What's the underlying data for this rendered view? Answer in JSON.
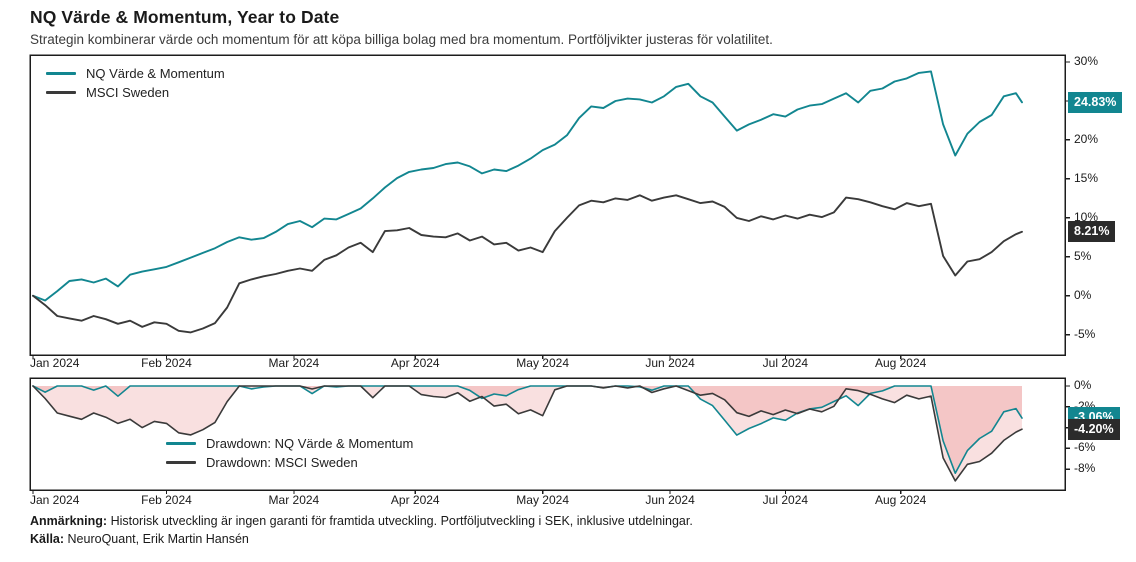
{
  "header": {
    "title": "NQ Värde & Momentum, Year to Date",
    "subtitle": "Strategin kombinerar värde och momentum för att köpa billiga bolag med bra momentum. Portföljvikter justeras för volatilitet."
  },
  "colors": {
    "nq": "#128690",
    "msci": "#3a3a3a",
    "badge_nq_bg": "#128690",
    "badge_msci_bg": "#2b2b2b",
    "badge_text": "#ffffff",
    "drawdown_fill": "#e05353",
    "axis": "#1c1c1c",
    "text": "#1a1a1a",
    "subtext": "#3c3c3c"
  },
  "chart_data": [
    {
      "type": "line",
      "panel": "cumulative-return",
      "ylim": [
        -7.6,
        30.9
      ],
      "ytick_values": [
        30,
        25,
        20,
        15,
        10,
        5,
        0,
        -5
      ],
      "ytick_labels": [
        "30%",
        "25%",
        "20%",
        "15%",
        "10%",
        "5%",
        "0%",
        "-5%"
      ],
      "x_tick_days": [
        0,
        22,
        43,
        63,
        84,
        105,
        124,
        143
      ],
      "x_tick_labels": [
        "Jan 2024",
        "Feb 2024",
        "Mar 2024",
        "Apr 2024",
        "May 2024",
        "Jun 2024",
        "Jul 2024",
        "Aug 2024"
      ],
      "last_day": 163,
      "x_step_days": 2,
      "grid": false,
      "legend_position": "top-left-inside",
      "series": [
        {
          "name": "NQ Värde & Momentum",
          "color_key": "nq",
          "values": [
            0.0,
            -0.6,
            0.6,
            1.9,
            2.1,
            1.7,
            2.2,
            1.2,
            2.7,
            3.1,
            3.4,
            3.7,
            4.3,
            4.9,
            5.5,
            6.1,
            6.9,
            7.5,
            7.2,
            7.4,
            8.2,
            9.2,
            9.6,
            8.8,
            9.9,
            9.8,
            10.5,
            11.2,
            12.5,
            13.9,
            15.1,
            15.9,
            16.2,
            16.4,
            16.9,
            17.1,
            16.6,
            15.7,
            16.2,
            16.0,
            16.7,
            17.6,
            18.7,
            19.4,
            20.6,
            22.8,
            24.3,
            24.1,
            25.0,
            25.3,
            25.2,
            24.8,
            25.6,
            26.8,
            27.2,
            25.6,
            24.8,
            23.0,
            21.2,
            22.0,
            22.6,
            23.3,
            23.0,
            23.9,
            24.4,
            24.6,
            25.3,
            26.0,
            24.8,
            26.3,
            26.6,
            27.5,
            27.9,
            28.6,
            28.8,
            22.0,
            18.0,
            20.8,
            22.3,
            23.2,
            25.6,
            26.0,
            24.83
          ]
        },
        {
          "name": "MSCI Sweden",
          "color_key": "msci",
          "values": [
            0.0,
            -1.2,
            -2.6,
            -2.9,
            -3.2,
            -2.6,
            -3.0,
            -3.6,
            -3.2,
            -4.0,
            -3.4,
            -3.6,
            -4.5,
            -4.7,
            -4.2,
            -3.5,
            -1.5,
            1.6,
            2.1,
            2.5,
            2.8,
            3.2,
            3.5,
            3.2,
            4.6,
            5.2,
            6.2,
            6.8,
            5.6,
            8.3,
            8.4,
            8.7,
            7.8,
            7.6,
            7.5,
            8.0,
            7.1,
            7.6,
            6.6,
            6.8,
            5.8,
            6.2,
            5.6,
            8.3,
            10.0,
            11.6,
            12.2,
            12.0,
            12.5,
            12.3,
            12.9,
            12.2,
            12.6,
            12.9,
            12.4,
            11.9,
            12.1,
            11.4,
            10.0,
            9.6,
            10.2,
            9.8,
            10.3,
            9.9,
            10.4,
            10.1,
            10.7,
            12.6,
            12.4,
            12.0,
            11.5,
            11.1,
            11.9,
            11.5,
            11.8,
            5.1,
            2.6,
            4.4,
            4.7,
            5.6,
            7.0,
            7.9,
            8.21
          ]
        }
      ],
      "value_labels": [
        {
          "text": "24.83%",
          "series": "NQ Värde & Momentum",
          "color_key": "badge_nq_bg"
        },
        {
          "text": "8.21%",
          "series": "MSCI Sweden",
          "color_key": "badge_msci_bg"
        }
      ]
    },
    {
      "type": "area",
      "panel": "drawdown",
      "ylim": [
        -10.0,
        0.77
      ],
      "ytick_values": [
        0,
        -2,
        -4,
        -6,
        -8
      ],
      "ytick_labels": [
        "0%",
        "-2%",
        "-4%",
        "-6%",
        "-8%"
      ],
      "x_tick_days": [
        0,
        22,
        43,
        63,
        84,
        105,
        124,
        143
      ],
      "x_tick_labels": [
        "Jan 2024",
        "Feb 2024",
        "Mar 2024",
        "Apr 2024",
        "May 2024",
        "Jun 2024",
        "Jul 2024",
        "Aug 2024"
      ],
      "last_day": 163,
      "fill_opacity": 0.18,
      "legend_position": "center-left-inside",
      "series": [
        {
          "name": "Drawdown: NQ Värde & Momentum",
          "color_key": "nq",
          "derived": "drawdown_of_cumulative_panel_1_series_1"
        },
        {
          "name": "Drawdown: MSCI Sweden",
          "color_key": "msci",
          "derived": "drawdown_of_cumulative_panel_1_series_2"
        }
      ],
      "value_labels": [
        {
          "text": "-3.06%",
          "series": "Drawdown: NQ Värde & Momentum",
          "color_key": "badge_nq_bg"
        },
        {
          "text": "-4.20%",
          "series": "Drawdown: MSCI Sweden",
          "color_key": "badge_msci_bg"
        }
      ]
    }
  ],
  "footnotes": [
    {
      "label": "Anmärkning:",
      "text": "Historisk utveckling är ingen garanti för framtida utveckling. Portföljutveckling i SEK, inklusive utdelningar."
    },
    {
      "label": "Källa:",
      "text": "NeuroQuant, Erik Martin Hansén"
    }
  ]
}
